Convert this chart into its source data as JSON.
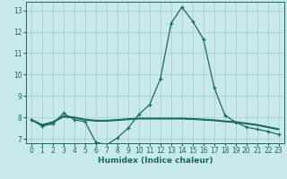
{
  "xlabel": "Humidex (Indice chaleur)",
  "ylabel": "",
  "xlim": [
    -0.5,
    23.5
  ],
  "ylim": [
    6.8,
    13.4
  ],
  "yticks": [
    7,
    8,
    9,
    10,
    11,
    12,
    13
  ],
  "xticks": [
    0,
    1,
    2,
    3,
    4,
    5,
    6,
    7,
    8,
    9,
    10,
    11,
    12,
    13,
    14,
    15,
    16,
    17,
    18,
    19,
    20,
    21,
    22,
    23
  ],
  "background_color": "#c8eaea",
  "grid_color": "#a8cccc",
  "line_color": "#1a6b5a",
  "lines": [
    {
      "x": [
        0,
        1,
        2,
        3,
        4,
        5,
        6,
        7,
        8,
        9,
        10,
        11,
        12,
        13,
        14,
        15,
        16,
        17,
        18,
        19,
        20,
        21,
        22,
        23
      ],
      "y": [
        7.9,
        7.6,
        7.7,
        8.2,
        7.9,
        7.8,
        6.85,
        6.72,
        7.05,
        7.5,
        8.15,
        8.6,
        9.8,
        12.4,
        13.15,
        12.5,
        11.65,
        9.4,
        8.1,
        7.78,
        7.55,
        7.45,
        7.35,
        7.2
      ],
      "has_markers": true
    },
    {
      "x": [
        0,
        1,
        2,
        3,
        4,
        5,
        6,
        7,
        8,
        9,
        10,
        11,
        12,
        13,
        14,
        15,
        16,
        17,
        18,
        19,
        20,
        21,
        22,
        23
      ],
      "y": [
        7.9,
        7.65,
        7.78,
        8.05,
        8.0,
        7.9,
        7.85,
        7.85,
        7.88,
        7.92,
        7.95,
        7.95,
        7.95,
        7.95,
        7.95,
        7.93,
        7.9,
        7.87,
        7.82,
        7.78,
        7.72,
        7.65,
        7.55,
        7.45
      ],
      "has_markers": false
    },
    {
      "x": [
        0,
        1,
        2,
        3,
        4,
        5,
        6,
        7,
        8,
        9,
        10,
        11,
        12,
        13,
        14,
        15,
        16,
        17,
        18,
        19,
        20,
        21,
        22,
        23
      ],
      "y": [
        7.92,
        7.67,
        7.8,
        8.08,
        8.02,
        7.92,
        7.87,
        7.87,
        7.9,
        7.94,
        7.97,
        7.97,
        7.97,
        7.97,
        7.97,
        7.95,
        7.92,
        7.89,
        7.84,
        7.8,
        7.74,
        7.67,
        7.57,
        7.47
      ],
      "has_markers": false
    },
    {
      "x": [
        0,
        1,
        2,
        3,
        4,
        5,
        6,
        7,
        8,
        9,
        10,
        11,
        12,
        13,
        14,
        15,
        16,
        17,
        18,
        19,
        20,
        21,
        22,
        23
      ],
      "y": [
        7.88,
        7.63,
        7.76,
        8.02,
        7.98,
        7.88,
        7.83,
        7.83,
        7.86,
        7.9,
        7.93,
        7.93,
        7.93,
        7.93,
        7.93,
        7.91,
        7.88,
        7.85,
        7.8,
        7.76,
        7.7,
        7.63,
        7.53,
        7.43
      ],
      "has_markers": false
    }
  ]
}
